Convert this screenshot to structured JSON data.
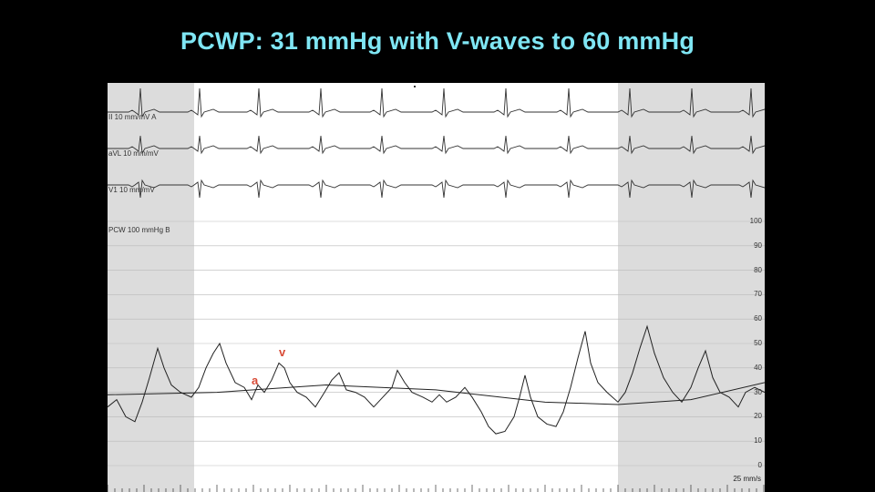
{
  "slide": {
    "title": "PCWP: 31 mmHg with V-waves to 60 mmHg"
  },
  "tracing": {
    "leads": [
      {
        "label": "II  10 mm/mV  A"
      },
      {
        "label": "aVL  10 mm/mV"
      },
      {
        "label": "V1  10 mm/mV"
      }
    ],
    "pressure_channel": {
      "label": "PCW  100 mmHg  B"
    },
    "pressure_scale": [
      "100",
      "90",
      "80",
      "70",
      "60",
      "50",
      "40",
      "30",
      "20",
      "10",
      "0"
    ],
    "annotations": {
      "a_wave": "a",
      "v_wave": "v"
    },
    "speed": "25 mm/s"
  }
}
